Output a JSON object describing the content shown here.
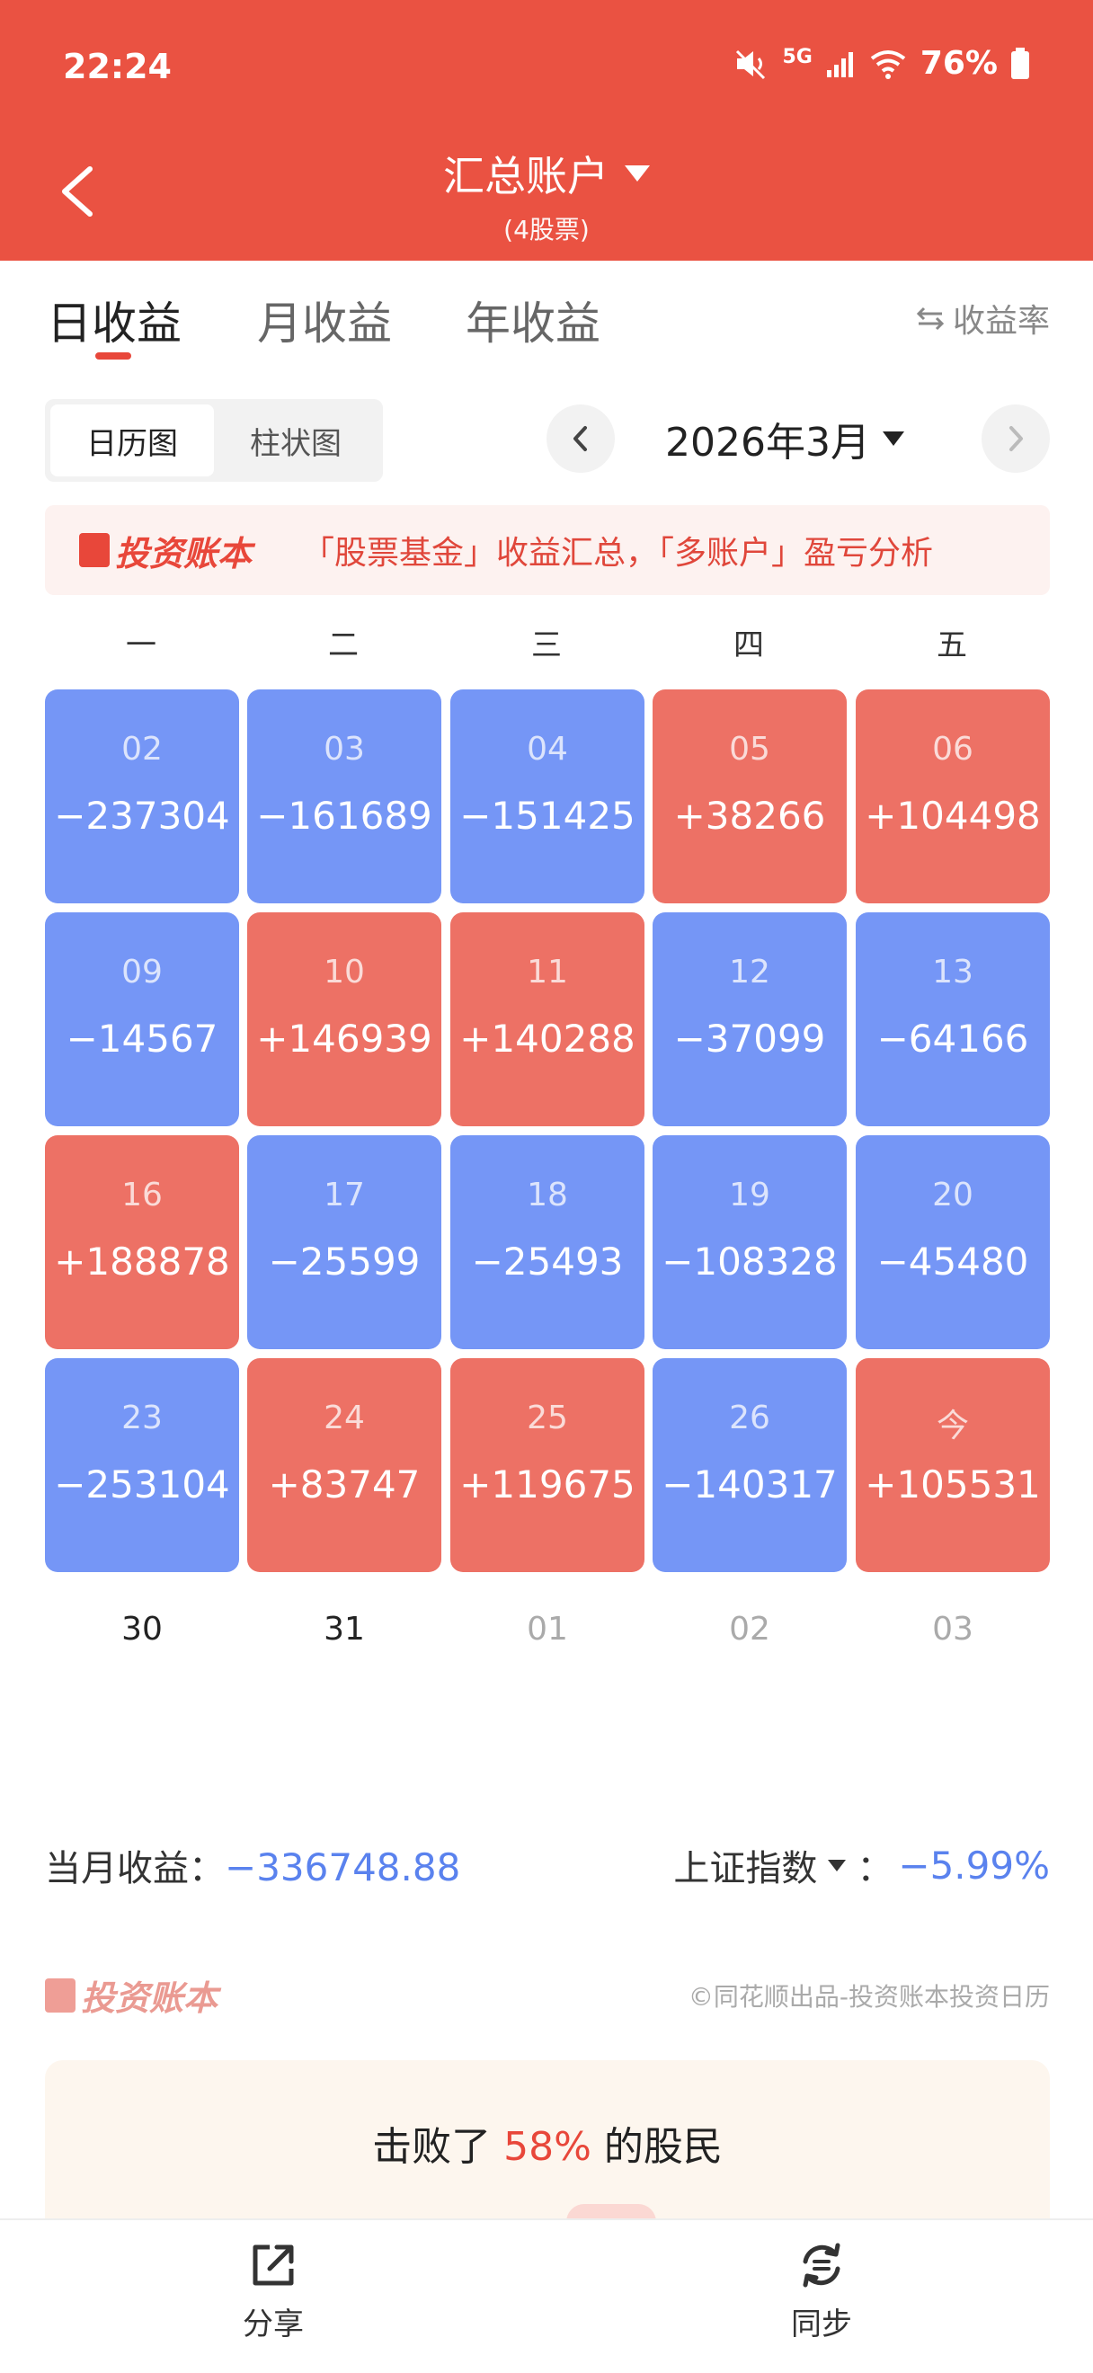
{
  "status": {
    "time": "22:24",
    "network": "5G",
    "battery": "76%"
  },
  "header": {
    "title": "汇总账户",
    "subtitle": "(4股票)"
  },
  "tabs": [
    "日收益",
    "月收益",
    "年收益"
  ],
  "rate_toggle": "收益率",
  "view_toggle": [
    "日历图",
    "柱状图"
  ],
  "month": "2026年3月",
  "banner": {
    "brand": "投资账本",
    "text": "「股票基金」收益汇总，「多账户」盈亏分析"
  },
  "weekdays": [
    "一",
    "二",
    "三",
    "四",
    "五"
  ],
  "calendar": [
    [
      {
        "day": "02",
        "value": "−237304"
      },
      {
        "day": "03",
        "value": "−161689"
      },
      {
        "day": "04",
        "value": "−151425"
      },
      {
        "day": "05",
        "value": "+38266"
      },
      {
        "day": "06",
        "value": "+104498"
      }
    ],
    [
      {
        "day": "09",
        "value": "−14567"
      },
      {
        "day": "10",
        "value": "+146939"
      },
      {
        "day": "11",
        "value": "+140288"
      },
      {
        "day": "12",
        "value": "−37099"
      },
      {
        "day": "13",
        "value": "−64166"
      }
    ],
    [
      {
        "day": "16",
        "value": "+188878"
      },
      {
        "day": "17",
        "value": "−25599"
      },
      {
        "day": "18",
        "value": "−25493"
      },
      {
        "day": "19",
        "value": "−108328"
      },
      {
        "day": "20",
        "value": "−45480"
      }
    ],
    [
      {
        "day": "23",
        "value": "−253104"
      },
      {
        "day": "24",
        "value": "+83747"
      },
      {
        "day": "25",
        "value": "+119675"
      },
      {
        "day": "26",
        "value": "−140317"
      },
      {
        "day": "今",
        "value": "+105531"
      }
    ]
  ],
  "last_row": [
    {
      "day": "30",
      "current_month": true
    },
    {
      "day": "31",
      "current_month": true
    },
    {
      "day": "01",
      "current_month": false
    },
    {
      "day": "02",
      "current_month": false
    },
    {
      "day": "03",
      "current_month": false
    }
  ],
  "summary": {
    "month_label": "当月收益：",
    "month_value": "−336748.88",
    "index_label": "上证指数",
    "index_sep": "：",
    "index_value": "−5.99%"
  },
  "footer": {
    "brand": "投资账本",
    "copyright": "©同花顺出品-投资账本投资日历"
  },
  "beat": {
    "prefix": "击败了 ",
    "percent": "58%",
    "suffix": " 的股民"
  },
  "bottom_bar": {
    "share": "分享",
    "sync": "同步"
  },
  "colors": {
    "header": "#ea5242",
    "positive": "#ed7165",
    "negative": "#7596f6",
    "accent": "#e8473a"
  }
}
